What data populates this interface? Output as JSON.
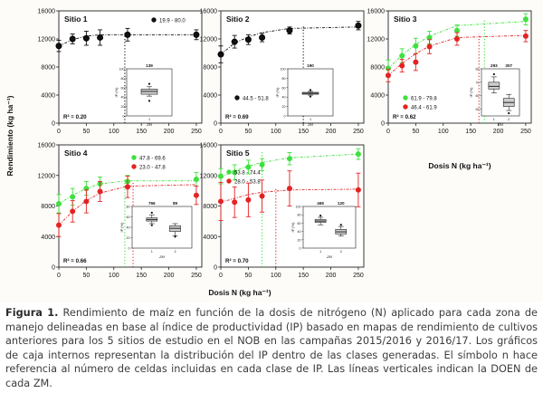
{
  "figure": {
    "caption_lead": "Figura 1.",
    "caption_body": "Rendimiento de maíz en función de la dosis de nitrógeno (N) aplicado para cada zona de manejo delineadas en base al índice de productividad (IP) basado en mapas de rendimiento de cultivos anteriores para los 5 sitios de estudio en el NOB en las campañas 2015/2016 y 2016/17. Los gráficos de caja internos representan la distribución del IP dentro de las clases generadas. El símbolo n hace referencia al número de celdas incluidas en cada clase de IP. Las líneas verticales indican la DOEN de cada ZM.",
    "ylabel": "Rendimiento (kg ha⁻¹)",
    "xlabel": "Dosis N (kg ha⁻¹)",
    "x_ticks": [
      "0",
      "50",
      "100",
      "150",
      "200",
      "250"
    ],
    "y_ticks": [
      "0",
      "4000",
      "8000",
      "12000",
      "16000"
    ],
    "inset_ylabel": "IP (%)",
    "inset_xlabel": "ZM",
    "colors": {
      "black": "#111111",
      "green": "#3ee03e",
      "red": "#e52222",
      "box_fill": "#cfcfcf"
    }
  },
  "chart_data": [
    {
      "type": "scatter",
      "title": "Sitio 1",
      "r2": "R² = 0.20",
      "xlim": [
        0,
        260
      ],
      "ylim": [
        0,
        16000
      ],
      "series": [
        {
          "name": "19.9 - 80.0",
          "color": "black",
          "x": [
            0,
            25,
            50,
            75,
            125,
            250
          ],
          "y": [
            11000,
            12000,
            12100,
            12200,
            12600,
            12600
          ],
          "err": [
            800,
            700,
            1000,
            1100,
            900,
            700
          ],
          "fit_y": [
            11000,
            11900,
            12400,
            12600,
            12600,
            12600
          ],
          "doen": 120
        }
      ],
      "inset": {
        "n": [
          "139"
        ],
        "categories": [
          "1"
        ],
        "ylim": [
          0,
          100
        ],
        "y_ticks": [
          "0",
          "20",
          "40",
          "60",
          "80",
          "100"
        ],
        "boxes": [
          {
            "min": 42,
            "q1": 46,
            "median": 52,
            "q3": 57,
            "max": 62,
            "outliers": [
              68,
              32
            ]
          }
        ]
      }
    },
    {
      "type": "scatter",
      "title": "Sitio 2",
      "r2": "R² = 0.69",
      "xlim": [
        0,
        260
      ],
      "ylim": [
        0,
        16000
      ],
      "series": [
        {
          "name": "44.5 - 51.8",
          "color": "black",
          "x": [
            0,
            25,
            50,
            75,
            125,
            250
          ],
          "y": [
            9800,
            11600,
            11900,
            12200,
            13200,
            13900
          ],
          "err": [
            1200,
            900,
            700,
            600,
            500,
            600
          ],
          "fit_y": [
            9800,
            11400,
            12300,
            12900,
            13500,
            13700
          ],
          "doen": 150
        }
      ],
      "inset": {
        "n": [
          "190"
        ],
        "categories": [
          "1"
        ],
        "ylim": [
          0,
          100
        ],
        "y_ticks": [
          "0",
          "20",
          "40",
          "60",
          "80",
          "100"
        ],
        "boxes": [
          {
            "min": 44,
            "q1": 46,
            "median": 48,
            "q3": 50,
            "max": 52,
            "outliers": [
              55,
              41
            ]
          }
        ]
      }
    },
    {
      "type": "scatter",
      "title": "Sitio 3",
      "r2": "R² = 0.62",
      "xlim": [
        0,
        260
      ],
      "ylim": [
        0,
        16000
      ],
      "series": [
        {
          "name": "61.9 - 79.8",
          "color": "green",
          "x": [
            0,
            25,
            50,
            75,
            125,
            250
          ],
          "y": [
            7800,
            9600,
            11000,
            12200,
            13200,
            14800
          ],
          "err": [
            1200,
            1000,
            1100,
            900,
            800,
            800
          ],
          "fit_y": [
            7800,
            9700,
            11200,
            12400,
            13900,
            14500
          ],
          "doen": 175
        },
        {
          "name": "46.4 - 61.9",
          "color": "red",
          "x": [
            0,
            25,
            50,
            75,
            125,
            250
          ],
          "y": [
            6800,
            8200,
            8700,
            10900,
            12000,
            12400
          ],
          "err": [
            900,
            900,
            1200,
            1000,
            900,
            800
          ],
          "fit_y": [
            6800,
            8500,
            9900,
            11000,
            12200,
            12500
          ],
          "doen": 165
        }
      ],
      "inset": {
        "n": [
          "293",
          "307"
        ],
        "categories": [
          "1",
          "2"
        ],
        "ylim": [
          45,
          80
        ],
        "y_ticks": [
          "50",
          "60",
          "70",
          "80"
        ],
        "boxes": [
          {
            "min": 62,
            "q1": 65,
            "median": 67,
            "q3": 70,
            "max": 74,
            "outliers": [
              76
            ]
          },
          {
            "min": 49,
            "q1": 52,
            "median": 55,
            "q3": 58,
            "max": 61,
            "outliers": [
              47
            ]
          }
        ]
      }
    },
    {
      "type": "scatter",
      "title": "Sitio 4",
      "r2": "R² = 0.66",
      "xlim": [
        0,
        260
      ],
      "ylim": [
        0,
        16000
      ],
      "series": [
        {
          "name": "47.8 - 69.6",
          "color": "green",
          "x": [
            0,
            25,
            50,
            75,
            125,
            250
          ],
          "y": [
            8300,
            9200,
            10300,
            10900,
            11200,
            11500
          ],
          "err": [
            1200,
            1100,
            900,
            900,
            800,
            900
          ],
          "fit_y": [
            8300,
            9400,
            10300,
            10900,
            11300,
            11300
          ],
          "doen": 120
        },
        {
          "name": "23.0 - 47.8",
          "color": "red",
          "x": [
            0,
            25,
            50,
            75,
            125,
            250
          ],
          "y": [
            5500,
            7300,
            8600,
            9900,
            10500,
            9400
          ],
          "err": [
            1500,
            1400,
            1500,
            1300,
            1400,
            1200
          ],
          "fit_y": [
            5500,
            7300,
            8700,
            9700,
            10600,
            10800
          ],
          "doen": 135
        }
      ],
      "inset": {
        "n": [
          "766",
          "89"
        ],
        "categories": [
          "1",
          "2"
        ],
        "ylim": [
          0,
          80
        ],
        "y_ticks": [
          "0",
          "20",
          "40",
          "60",
          "80"
        ],
        "boxes": [
          {
            "min": 47,
            "q1": 52,
            "median": 55,
            "q3": 58,
            "max": 64,
            "outliers": [
              68,
              44
            ]
          },
          {
            "min": 24,
            "q1": 32,
            "median": 38,
            "q3": 43,
            "max": 47,
            "outliers": [
              22
            ]
          }
        ]
      }
    },
    {
      "type": "scatter",
      "title": "Sitio 5",
      "r2": "R² = 0.70",
      "xlim": [
        0,
        260
      ],
      "ylim": [
        0,
        16000
      ],
      "series": [
        {
          "name": "53.8 - 74.4",
          "color": "green",
          "x": [
            0,
            25,
            50,
            75,
            125,
            250
          ],
          "y": [
            11900,
            12400,
            13100,
            13400,
            14200,
            14800
          ],
          "err": [
            1000,
            1000,
            900,
            800,
            800,
            700
          ],
          "fit_y": [
            11800,
            12600,
            13200,
            13700,
            14300,
            14800
          ],
          "doen": 75
        },
        {
          "name": "28.0 - 53.8",
          "color": "red",
          "x": [
            0,
            25,
            50,
            75,
            125,
            250
          ],
          "y": [
            8600,
            8500,
            8800,
            9300,
            10300,
            10100
          ],
          "err": [
            2500,
            2000,
            2200,
            2100,
            2300,
            2200
          ],
          "fit_y": [
            8500,
            9000,
            9500,
            9800,
            10100,
            10200
          ],
          "doen": 100
        }
      ],
      "inset": {
        "n": [
          "465",
          "120"
        ],
        "categories": [
          "1",
          "2"
        ],
        "ylim": [
          0,
          100
        ],
        "y_ticks": [
          "0",
          "20",
          "40",
          "60",
          "80",
          "100"
        ],
        "boxes": [
          {
            "min": 56,
            "q1": 62,
            "median": 65,
            "q3": 69,
            "max": 74,
            "outliers": [
              78
            ]
          },
          {
            "min": 29,
            "q1": 34,
            "median": 39,
            "q3": 45,
            "max": 52,
            "outliers": [
              56
            ]
          }
        ]
      }
    }
  ]
}
